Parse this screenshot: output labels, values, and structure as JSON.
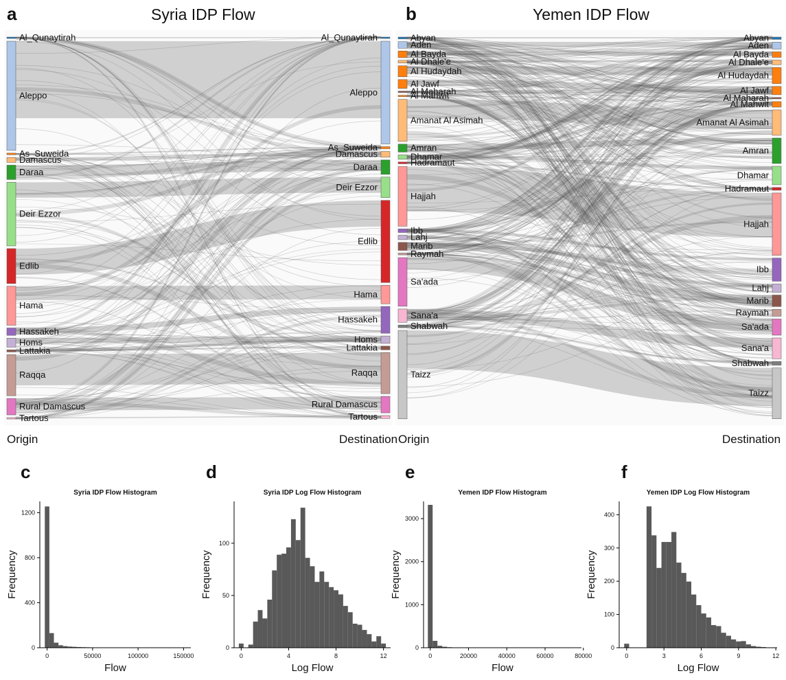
{
  "panels": {
    "a": {
      "letter": "a",
      "title": "Syria IDP Flow"
    },
    "b": {
      "letter": "b",
      "title": "Yemen IDP Flow"
    },
    "c": {
      "letter": "c"
    },
    "d": {
      "letter": "d"
    },
    "e": {
      "letter": "e"
    },
    "f": {
      "letter": "f"
    }
  },
  "captions": {
    "syria_origin": "Origin",
    "syria_destination": "Destination",
    "yemen_origin": "Origin",
    "yemen_destination": "Destination"
  },
  "chart_data": [
    {
      "type": "sankey",
      "id": "syria",
      "title": "Syria IDP Flow",
      "origin_label": "Origin",
      "destination_label": "Destination",
      "origins": [
        {
          "name": "Al_Qunaytirah",
          "color": "#1f77b4",
          "share": 0.002
        },
        {
          "name": "Aleppo",
          "color": "#aec7e8",
          "share": 0.266
        },
        {
          "name": "As_Suweida",
          "color": "#ff7f0e",
          "share": 0.004
        },
        {
          "name": "Damascus",
          "color": "#ffbb78",
          "share": 0.012
        },
        {
          "name": "Daraa",
          "color": "#2ca02c",
          "share": 0.035
        },
        {
          "name": "Deir Ezzor",
          "color": "#98df8a",
          "share": 0.155
        },
        {
          "name": "Edlib",
          "color": "#d62728",
          "share": 0.085
        },
        {
          "name": "Hama",
          "color": "#ff9896",
          "share": 0.095
        },
        {
          "name": "Hassakeh",
          "color": "#9467bd",
          "share": 0.018
        },
        {
          "name": "Homs",
          "color": "#c5b0d5",
          "share": 0.022
        },
        {
          "name": "Lattakia",
          "color": "#8c564b",
          "share": 0.005
        },
        {
          "name": "Raqqa",
          "color": "#c49c94",
          "share": 0.1
        },
        {
          "name": "Rural Damascus",
          "color": "#e377c2",
          "share": 0.04
        },
        {
          "name": "Tartous",
          "color": "#f7b6d2",
          "share": 0.003
        }
      ],
      "destinations": [
        {
          "name": "Al_Qunaytirah",
          "color": "#1f77b4",
          "share": 0.003
        },
        {
          "name": "Aleppo",
          "color": "#aec7e8",
          "share": 0.25
        },
        {
          "name": "As_Suweida",
          "color": "#ff7f0e",
          "share": 0.005
        },
        {
          "name": "Damascus",
          "color": "#ffbb78",
          "share": 0.014
        },
        {
          "name": "Daraa",
          "color": "#2ca02c",
          "share": 0.035
        },
        {
          "name": "Deir Ezzor",
          "color": "#98df8a",
          "share": 0.05
        },
        {
          "name": "Edlib",
          "color": "#d62728",
          "share": 0.2
        },
        {
          "name": "Hama",
          "color": "#ff9896",
          "share": 0.045
        },
        {
          "name": "Hassakeh",
          "color": "#9467bd",
          "share": 0.065
        },
        {
          "name": "Homs",
          "color": "#c5b0d5",
          "share": 0.018
        },
        {
          "name": "Lattakia",
          "color": "#8c564b",
          "share": 0.009
        },
        {
          "name": "Raqqa",
          "color": "#c49c94",
          "share": 0.1
        },
        {
          "name": "Rural Damascus",
          "color": "#e377c2",
          "share": 0.04
        },
        {
          "name": "Tartous",
          "color": "#f7b6d2",
          "share": 0.007
        }
      ]
    },
    {
      "type": "sankey",
      "id": "yemen",
      "title": "Yemen IDP Flow",
      "origin_label": "Origin",
      "destination_label": "Destination",
      "origins": [
        {
          "name": "Abyan",
          "color": "#1f77b4",
          "share": 0.004
        },
        {
          "name": "Aden",
          "color": "#aec7e8",
          "share": 0.015
        },
        {
          "name": "Al Bayda",
          "color": "#ff7f0e",
          "share": 0.015
        },
        {
          "name": "Al Dhale'e",
          "color": "#ffbb78",
          "share": 0.006
        },
        {
          "name": "Al Hudaydah",
          "color": "#ff7f0e",
          "share": 0.025
        },
        {
          "name": "Al Jawf",
          "color": "#ff7f0e",
          "share": 0.02
        },
        {
          "name": "Al Maharah",
          "color": "#8c564b",
          "share": 0.002
        },
        {
          "name": "Al Mahwit",
          "color": "#ff7f0e",
          "share": 0.003
        },
        {
          "name": "Amanat Al Asimah",
          "color": "#ffbb78",
          "share": 0.095
        },
        {
          "name": "Amran",
          "color": "#2ca02c",
          "share": 0.018
        },
        {
          "name": "Dhamar",
          "color": "#98df8a",
          "share": 0.01
        },
        {
          "name": "Hadramaut",
          "color": "#d62728",
          "share": 0.004
        },
        {
          "name": "Hajjah",
          "color": "#ff9896",
          "share": 0.135
        },
        {
          "name": "Ibb",
          "color": "#9467bd",
          "share": 0.008
        },
        {
          "name": "Lahj",
          "color": "#c5b0d5",
          "share": 0.01
        },
        {
          "name": "Marib",
          "color": "#8c564b",
          "share": 0.018
        },
        {
          "name": "Raymah",
          "color": "#c49c94",
          "share": 0.004
        },
        {
          "name": "Sa'ada",
          "color": "#e377c2",
          "share": 0.11
        },
        {
          "name": "Sana'a",
          "color": "#f7b6d2",
          "share": 0.03
        },
        {
          "name": "Shabwah",
          "color": "#7f7f7f",
          "share": 0.006
        },
        {
          "name": "Taizz",
          "color": "#c7c7c7",
          "share": 0.2
        }
      ],
      "destinations": [
        {
          "name": "Abyan",
          "color": "#1f77b4",
          "share": 0.005
        },
        {
          "name": "Aden",
          "color": "#aec7e8",
          "share": 0.015
        },
        {
          "name": "Al Bayda",
          "color": "#ff7f0e",
          "share": 0.012
        },
        {
          "name": "Al Dhale'e",
          "color": "#ffbb78",
          "share": 0.01
        },
        {
          "name": "Al Hudaydah",
          "color": "#ff7f0e",
          "share": 0.035
        },
        {
          "name": "Al Jawf",
          "color": "#ff7f0e",
          "share": 0.018
        },
        {
          "name": "Al Maharah",
          "color": "#8c564b",
          "share": 0.002
        },
        {
          "name": "Al Mahwit",
          "color": "#ff7f0e",
          "share": 0.012
        },
        {
          "name": "Amanat Al Asimah",
          "color": "#ffbb78",
          "share": 0.055
        },
        {
          "name": "Amran",
          "color": "#2ca02c",
          "share": 0.055
        },
        {
          "name": "Dhamar",
          "color": "#98df8a",
          "share": 0.04
        },
        {
          "name": "Hadramaut",
          "color": "#d62728",
          "share": 0.006
        },
        {
          "name": "Hajjah",
          "color": "#ff9896",
          "share": 0.135
        },
        {
          "name": "Ibb",
          "color": "#9467bd",
          "share": 0.05
        },
        {
          "name": "Lahj",
          "color": "#c5b0d5",
          "share": 0.018
        },
        {
          "name": "Marib",
          "color": "#8c564b",
          "share": 0.025
        },
        {
          "name": "Raymah",
          "color": "#c49c94",
          "share": 0.015
        },
        {
          "name": "Sa'ada",
          "color": "#e377c2",
          "share": 0.035
        },
        {
          "name": "Sana'a",
          "color": "#f7b6d2",
          "share": 0.045
        },
        {
          "name": "Shabwah",
          "color": "#7f7f7f",
          "share": 0.008
        },
        {
          "name": "Taizz",
          "color": "#c7c7c7",
          "share": 0.11
        }
      ]
    },
    {
      "type": "histogram",
      "id": "syria_flow",
      "title": "Syria IDP Flow Histogram",
      "xlabel": "Flow",
      "ylabel": "Frequency",
      "xlim": [
        -8000,
        158000
      ],
      "ylim": [
        0,
        1300
      ],
      "xticks": [
        0,
        50000,
        100000,
        150000
      ],
      "xtick_labels": [
        "0",
        "50000",
        "100000",
        "150000"
      ],
      "yticks": [
        0,
        400,
        800,
        1200
      ],
      "ytick_labels": [
        "0",
        "400",
        "800",
        "1200"
      ],
      "bins": [
        [
          -2500,
          2500,
          1255
        ],
        [
          2500,
          7500,
          130
        ],
        [
          7500,
          12500,
          45
        ],
        [
          12500,
          17500,
          22
        ],
        [
          17500,
          22500,
          14
        ],
        [
          22500,
          27500,
          10
        ],
        [
          27500,
          32500,
          8
        ],
        [
          32500,
          37500,
          6
        ],
        [
          37500,
          42500,
          5
        ],
        [
          42500,
          47500,
          4
        ],
        [
          47500,
          52500,
          3
        ],
        [
          52500,
          57500,
          3
        ],
        [
          57500,
          62500,
          2
        ],
        [
          67500,
          72500,
          2
        ],
        [
          77500,
          82500,
          2
        ],
        [
          87500,
          92500,
          1
        ],
        [
          102500,
          107500,
          1
        ],
        [
          107500,
          112500,
          2
        ],
        [
          117500,
          122500,
          1
        ],
        [
          127500,
          132500,
          2
        ],
        [
          137500,
          142500,
          1
        ],
        [
          147500,
          152500,
          1
        ]
      ]
    },
    {
      "type": "histogram",
      "id": "syria_log",
      "title": "Syria IDP Log Flow Histogram",
      "xlabel": "Log Flow",
      "ylabel": "Frequency",
      "xlim": [
        -0.6,
        12.6
      ],
      "ylim": [
        0,
        140
      ],
      "xticks": [
        0,
        4,
        8,
        12
      ],
      "xtick_labels": [
        "0",
        "4",
        "8",
        "12"
      ],
      "yticks": [
        0,
        50,
        100
      ],
      "ytick_labels": [
        "0",
        "50",
        "100"
      ],
      "bins": [
        [
          -0.2,
          0.2,
          4
        ],
        [
          0.2,
          0.6,
          0
        ],
        [
          0.6,
          1.0,
          3
        ],
        [
          1.0,
          1.4,
          25
        ],
        [
          1.4,
          1.8,
          36
        ],
        [
          1.8,
          2.2,
          28
        ],
        [
          2.2,
          2.6,
          46
        ],
        [
          2.6,
          3.0,
          74
        ],
        [
          3.0,
          3.4,
          89
        ],
        [
          3.4,
          3.8,
          90
        ],
        [
          3.8,
          4.2,
          96
        ],
        [
          4.2,
          4.6,
          123
        ],
        [
          4.6,
          5.0,
          103
        ],
        [
          5.0,
          5.4,
          134
        ],
        [
          5.4,
          5.8,
          86
        ],
        [
          5.8,
          6.2,
          78
        ],
        [
          6.2,
          6.6,
          63
        ],
        [
          6.6,
          7.0,
          73
        ],
        [
          7.0,
          7.4,
          63
        ],
        [
          7.4,
          7.8,
          58
        ],
        [
          7.8,
          8.2,
          55
        ],
        [
          8.2,
          8.6,
          51
        ],
        [
          8.6,
          9.0,
          40
        ],
        [
          9.0,
          9.4,
          34
        ],
        [
          9.4,
          9.8,
          23
        ],
        [
          9.8,
          10.2,
          22
        ],
        [
          10.2,
          10.6,
          17
        ],
        [
          10.6,
          11.0,
          13
        ],
        [
          11.0,
          11.4,
          6
        ],
        [
          11.4,
          11.8,
          11
        ],
        [
          11.8,
          12.2,
          4
        ]
      ]
    },
    {
      "type": "histogram",
      "id": "yemen_flow",
      "title": "Yemen IDP Flow Histogram",
      "xlabel": "Flow",
      "ylabel": "Frequency",
      "xlim": [
        -3500,
        79000
      ],
      "ylim": [
        0,
        3400
      ],
      "xticks": [
        0,
        20000,
        40000,
        60000,
        80000
      ],
      "xtick_labels": [
        "0",
        "20000",
        "40000",
        "60000",
        "80000"
      ],
      "yticks": [
        0,
        1000,
        2000,
        3000
      ],
      "ytick_labels": [
        "0",
        "1000",
        "2000",
        "3000"
      ],
      "bins": [
        [
          -1250,
          1250,
          3320
        ],
        [
          1250,
          3750,
          160
        ],
        [
          3750,
          6250,
          45
        ],
        [
          6250,
          8750,
          22
        ],
        [
          8750,
          11250,
          12
        ],
        [
          11250,
          13750,
          8
        ],
        [
          13750,
          16250,
          6
        ],
        [
          16250,
          18750,
          5
        ],
        [
          18750,
          21250,
          4
        ],
        [
          21250,
          23750,
          3
        ],
        [
          23750,
          26250,
          3
        ],
        [
          36250,
          38750,
          2
        ],
        [
          46250,
          48750,
          2
        ],
        [
          56250,
          58750,
          1
        ],
        [
          66250,
          68750,
          1
        ],
        [
          76250,
          78750,
          1
        ]
      ]
    },
    {
      "type": "histogram",
      "id": "yemen_log",
      "title": "Yemen IDP Log Flow Histogram",
      "xlabel": "Log Flow",
      "ylabel": "Frequency",
      "xlim": [
        -0.6,
        12.1
      ],
      "ylim": [
        0,
        440
      ],
      "xticks": [
        0,
        3,
        6,
        9,
        12
      ],
      "xtick_labels": [
        "0",
        "3",
        "6",
        "9",
        "12"
      ],
      "yticks": [
        0,
        100,
        200,
        300,
        400
      ],
      "ytick_labels": [
        "0",
        "100",
        "200",
        "300",
        "400"
      ],
      "bins": [
        [
          -0.2,
          0.2,
          12
        ],
        [
          1.6,
          2.0,
          425
        ],
        [
          2.0,
          2.4,
          338
        ],
        [
          2.4,
          2.8,
          240
        ],
        [
          2.8,
          3.2,
          318
        ],
        [
          3.2,
          3.6,
          318
        ],
        [
          3.6,
          4.0,
          348
        ],
        [
          4.0,
          4.4,
          256
        ],
        [
          4.4,
          4.8,
          225
        ],
        [
          4.8,
          5.2,
          199
        ],
        [
          5.2,
          5.6,
          160
        ],
        [
          5.6,
          6.0,
          128
        ],
        [
          6.0,
          6.4,
          103
        ],
        [
          6.4,
          6.8,
          91
        ],
        [
          6.8,
          7.2,
          68
        ],
        [
          7.2,
          7.6,
          65
        ],
        [
          7.6,
          8.0,
          45
        ],
        [
          8.0,
          8.4,
          36
        ],
        [
          8.4,
          8.8,
          25
        ],
        [
          8.8,
          9.2,
          19
        ],
        [
          9.2,
          9.6,
          20
        ],
        [
          9.6,
          10.0,
          10
        ],
        [
          10.0,
          10.4,
          5
        ],
        [
          10.4,
          10.8,
          3
        ],
        [
          10.8,
          11.2,
          2
        ]
      ]
    }
  ]
}
